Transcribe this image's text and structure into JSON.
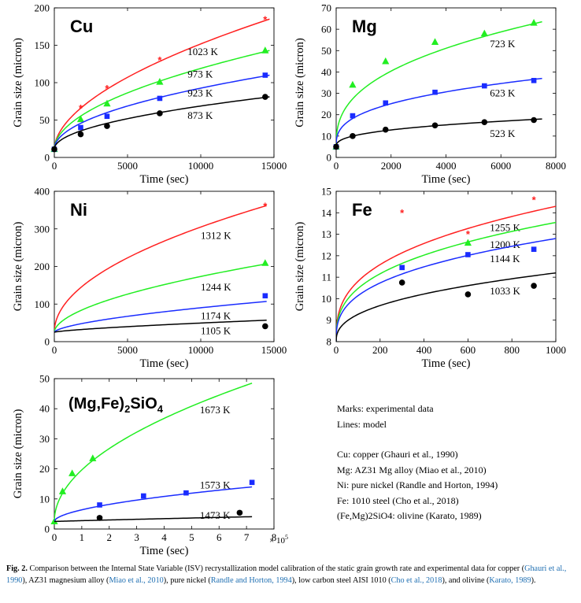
{
  "caption": {
    "figure_label": "Fig. 2.",
    "segments": [
      {
        "text": " Comparison between the Internal State Variable (ISV) recrystallization model calibration of the static grain growth rate and experimental data for copper (",
        "ref": false
      },
      {
        "text": "Ghauri et al., 1990",
        "ref": true
      },
      {
        "text": "), AZ31 magnesium alloy (",
        "ref": false
      },
      {
        "text": "Miao et al., 2010",
        "ref": true
      },
      {
        "text": "), pure nickel (",
        "ref": false
      },
      {
        "text": "Randle and Horton, 1994",
        "ref": true
      },
      {
        "text": "), low carbon steel AISI 1010 (",
        "ref": false
      },
      {
        "text": "Cho et al., 2018",
        "ref": true
      },
      {
        "text": "), and olivine (",
        "ref": false
      },
      {
        "text": "Karato, 1989",
        "ref": true
      },
      {
        "text": ").",
        "ref": false
      }
    ]
  },
  "legend": {
    "line1": "Marks: experimental data",
    "line2": "Lines: model",
    "sources": [
      "Cu: copper (Ghauri et al., 1990)",
      "Mg: AZ31 Mg alloy (Miao et al., 2010)",
      "Ni: pure nickel (Randle and Horton, 1994)",
      "Fe: 1010 steel (Cho et al., 2018)",
      "(Fe,Mg)2SiO4: olivine (Karato, 1989)"
    ]
  },
  "colors": {
    "red": "#ff2020",
    "green": "#22ee22",
    "blue": "#1a2cff",
    "black": "#000000"
  },
  "chart_data": [
    {
      "type": "line",
      "panel": "Cu",
      "title": "Cu",
      "xlabel": "Time (sec)",
      "ylabel": "Grain size (micron)",
      "xlim": [
        0,
        15000
      ],
      "ylim": [
        0,
        200
      ],
      "xticks": [
        0,
        5000,
        10000,
        15000
      ],
      "yticks": [
        0,
        50,
        100,
        150,
        200
      ],
      "grid": false,
      "series": [
        {
          "name": "1023 K",
          "color": "red",
          "marker": "star",
          "label_at": [
            9100,
            141
          ],
          "points": [
            [
              0,
              11
            ],
            [
              1800,
              66
            ],
            [
              3600,
              92
            ],
            [
              7200,
              130
            ],
            [
              14400,
              184
            ]
          ],
          "model": {
            "y0": 11,
            "y_end": 185,
            "x_end": 14700,
            "n": 0.55
          }
        },
        {
          "name": "973 K",
          "color": "green",
          "marker": "triangle",
          "label_at": [
            9100,
            111
          ],
          "points": [
            [
              0,
              11
            ],
            [
              1800,
              51
            ],
            [
              3600,
              72
            ],
            [
              7200,
              101
            ],
            [
              14400,
              143
            ]
          ],
          "model": {
            "y0": 11,
            "y_end": 143,
            "x_end": 14700,
            "n": 0.52
          }
        },
        {
          "name": "923 K",
          "color": "blue",
          "marker": "square",
          "label_at": [
            9100,
            86
          ],
          "points": [
            [
              0,
              11
            ],
            [
              1800,
              40
            ],
            [
              3600,
              55
            ],
            [
              7200,
              79
            ],
            [
              14400,
              110
            ]
          ],
          "model": {
            "y0": 11,
            "y_end": 110,
            "x_end": 14700,
            "n": 0.5
          }
        },
        {
          "name": "873 K",
          "color": "black",
          "marker": "circle",
          "label_at": [
            9100,
            56
          ],
          "points": [
            [
              0,
              11
            ],
            [
              1800,
              31
            ],
            [
              3600,
              42
            ],
            [
              7200,
              59
            ],
            [
              14400,
              81
            ]
          ],
          "model": {
            "y0": 11,
            "y_end": 81,
            "x_end": 14700,
            "n": 0.5
          }
        }
      ]
    },
    {
      "type": "line",
      "panel": "Mg",
      "title": "Mg",
      "xlabel": "Time (sec)",
      "ylabel": "Grain size (micron)",
      "xlim": [
        0,
        8000
      ],
      "ylim": [
        0,
        70
      ],
      "xticks": [
        0,
        2000,
        4000,
        6000,
        8000
      ],
      "yticks": [
        0,
        10,
        20,
        30,
        40,
        50,
        60,
        70
      ],
      "grid": false,
      "series": [
        {
          "name": "723 K",
          "color": "green",
          "marker": "triangle",
          "label_at": [
            5600,
            53
          ],
          "points": [
            [
              0,
              5
            ],
            [
              600,
              34
            ],
            [
              1800,
              45
            ],
            [
              3600,
              54
            ],
            [
              5400,
              58
            ],
            [
              7200,
              63
            ]
          ],
          "model": {
            "y0": 5,
            "y_end": 63.5,
            "x_end": 7500,
            "n": 0.38
          }
        },
        {
          "name": "623 K",
          "color": "blue",
          "marker": "square",
          "label_at": [
            5600,
            30
          ],
          "points": [
            [
              0,
              5
            ],
            [
              600,
              19.5
            ],
            [
              1800,
              25.5
            ],
            [
              3600,
              30.5
            ],
            [
              5400,
              33.5
            ],
            [
              7200,
              36
            ]
          ],
          "model": {
            "y0": 5,
            "y_end": 37,
            "x_end": 7500,
            "n": 0.35
          }
        },
        {
          "name": "523 K",
          "color": "black",
          "marker": "circle",
          "label_at": [
            5600,
            11
          ],
          "points": [
            [
              0,
              5
            ],
            [
              600,
              10
            ],
            [
              1800,
              13
            ],
            [
              3600,
              15
            ],
            [
              5400,
              16.5
            ],
            [
              7200,
              17.5
            ]
          ],
          "model": {
            "y0": 5,
            "y_end": 18,
            "x_end": 7500,
            "n": 0.38
          }
        }
      ]
    },
    {
      "type": "line",
      "panel": "Ni",
      "title": "Ni",
      "xlabel": "Time (sec)",
      "ylabel": "Grain size (micron)",
      "xlim": [
        0,
        15000
      ],
      "ylim": [
        0,
        400
      ],
      "xticks": [
        0,
        5000,
        10000,
        15000
      ],
      "yticks": [
        0,
        100,
        200,
        300,
        400
      ],
      "grid": false,
      "series": [
        {
          "name": "1312 K",
          "color": "red",
          "marker": "star",
          "label_at": [
            10000,
            282
          ],
          "points": [
            [
              14400,
              360
            ]
          ],
          "model": {
            "y0": 25,
            "y_end": 362,
            "x_end": 14500,
            "n": 0.5
          }
        },
        {
          "name": "1244 K",
          "color": "green",
          "marker": "triangle",
          "label_at": [
            10000,
            145
          ],
          "points": [
            [
              14400,
              209
            ]
          ],
          "model": {
            "y0": 25,
            "y_end": 207,
            "x_end": 14500,
            "n": 0.55
          }
        },
        {
          "name": "1174 K",
          "color": "blue",
          "marker": "square",
          "label_at": [
            10000,
            68
          ],
          "points": [
            [
              14400,
              122
            ]
          ],
          "model": {
            "y0": 25,
            "y_end": 107,
            "x_end": 14500,
            "n": 0.62
          }
        },
        {
          "name": "1105 K",
          "color": "black",
          "marker": "circle",
          "label_at": [
            10000,
            28
          ],
          "points": [
            [
              14400,
              41
            ]
          ],
          "model": {
            "y0": 25,
            "y_end": 57,
            "x_end": 14500,
            "n": 0.72
          }
        }
      ]
    },
    {
      "type": "line",
      "panel": "Fe",
      "title": "Fe",
      "xlabel": "Time (sec)",
      "ylabel": "Grain size (micron)",
      "xlim": [
        0,
        1000
      ],
      "ylim": [
        8,
        15
      ],
      "xticks": [
        0,
        200,
        400,
        600,
        800,
        1000
      ],
      "yticks": [
        8,
        9,
        10,
        11,
        12,
        13,
        14,
        15
      ],
      "grid": false,
      "series": [
        {
          "name": "1255 K",
          "color": "red",
          "marker": "star",
          "label_at": [
            700,
            13.3
          ],
          "points": [
            [
              300,
              14
            ],
            [
              600,
              13
            ],
            [
              900,
              14.6
            ]
          ],
          "model": {
            "y0": 8,
            "y_end": 14.3,
            "x_end": 1000,
            "n": 0.35
          }
        },
        {
          "name": "1200 K",
          "color": "green",
          "marker": "triangle",
          "label_at": [
            700,
            12.5
          ],
          "points": [
            [
              600,
              12.6
            ]
          ],
          "model": {
            "y0": 8,
            "y_end": 13.55,
            "x_end": 1000,
            "n": 0.35
          }
        },
        {
          "name": "1144 K",
          "color": "blue",
          "marker": "square",
          "label_at": [
            700,
            11.85
          ],
          "points": [
            [
              300,
              11.45
            ],
            [
              600,
              12.05
            ],
            [
              900,
              12.3
            ]
          ],
          "model": {
            "y0": 8,
            "y_end": 12.8,
            "x_end": 1000,
            "n": 0.35
          }
        },
        {
          "name": "1033 K",
          "color": "black",
          "marker": "circle",
          "label_at": [
            700,
            10.35
          ],
          "points": [
            [
              300,
              10.75
            ],
            [
              600,
              10.2
            ],
            [
              900,
              10.6
            ]
          ],
          "model": {
            "y0": 8,
            "y_end": 11.2,
            "x_end": 1000,
            "n": 0.4
          }
        }
      ]
    },
    {
      "type": "line",
      "panel": "olivine",
      "title": "(Mg,Fe)2SiO4",
      "xlabel": "Time (sec)",
      "ylabel": "Grain size (micron)",
      "x_multiplier": "× 10^5",
      "xlim": [
        0,
        8
      ],
      "ylim": [
        0,
        50
      ],
      "xticks": [
        0,
        1,
        2,
        3,
        4,
        5,
        6,
        7,
        8
      ],
      "yticks": [
        0,
        10,
        20,
        30,
        40,
        50
      ],
      "grid": false,
      "series": [
        {
          "name": "1673 K",
          "color": "green",
          "marker": "triangle",
          "label_at": [
            5.3,
            39.5
          ],
          "points": [
            [
              0,
              2.5
            ],
            [
              0.3,
              12.5
            ],
            [
              0.65,
              18.5
            ],
            [
              1.4,
              23.5
            ]
          ],
          "model": {
            "y0": 2.5,
            "y_end": 48.5,
            "x_end": 7.2,
            "n": 0.5
          }
        },
        {
          "name": "1573 K",
          "color": "blue",
          "marker": "square",
          "label_at": [
            5.3,
            14.5
          ],
          "points": [
            [
              1.65,
              8
            ],
            [
              3.25,
              11
            ],
            [
              4.8,
              12
            ],
            [
              7.2,
              15.5
            ]
          ],
          "model": {
            "y0": 2.5,
            "y_end": 14,
            "x_end": 7.2,
            "n": 0.55
          }
        },
        {
          "name": "1473 K",
          "color": "black",
          "marker": "circle",
          "label_at": [
            5.3,
            4.5
          ],
          "points": [
            [
              1.65,
              3.7
            ],
            [
              6.75,
              5.4
            ]
          ],
          "model": {
            "y0": 2.5,
            "y_end": 4.1,
            "x_end": 7.2,
            "n": 0.9
          }
        }
      ]
    }
  ]
}
